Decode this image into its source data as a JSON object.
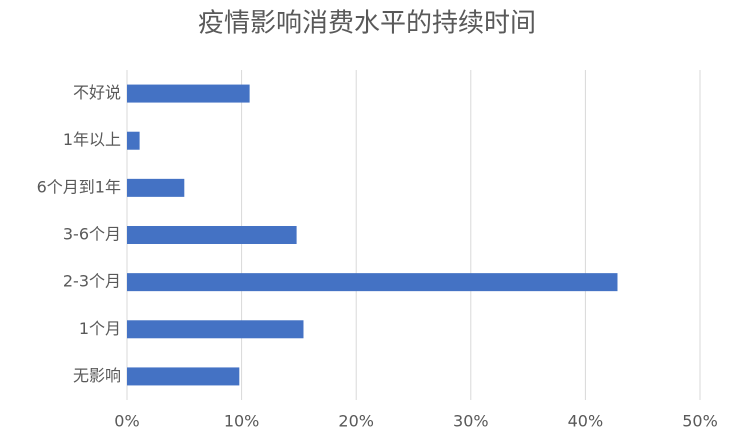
{
  "chart_data": {
    "type": "bar",
    "orientation": "horizontal",
    "title": "疫情影响消费水平的持续时间",
    "categories": [
      "不好说",
      "1年以上",
      "6个月到1年",
      "3-6个月",
      "2-3个月",
      "1个月",
      "无影响"
    ],
    "values": [
      10.7,
      1.1,
      5.0,
      14.8,
      42.8,
      15.4,
      9.8
    ],
    "color": "#4472c4",
    "xlim": [
      0,
      50
    ],
    "xticks": [
      {
        "value": 0,
        "label": "0%"
      },
      {
        "value": 10,
        "label": "10%"
      },
      {
        "value": 20,
        "label": "20%"
      },
      {
        "value": 30,
        "label": "30%"
      },
      {
        "value": 40,
        "label": "40%"
      },
      {
        "value": 50,
        "label": "50%"
      }
    ],
    "grid": true
  }
}
